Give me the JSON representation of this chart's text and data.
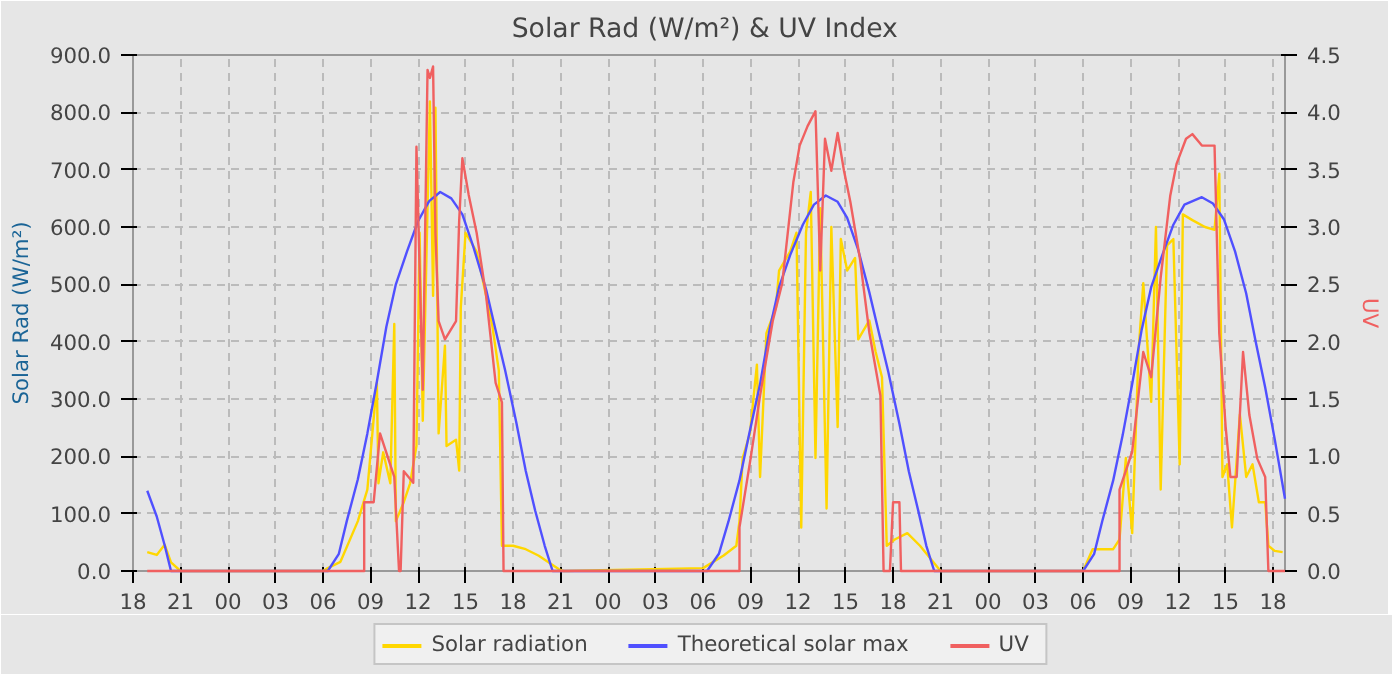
{
  "chart_data": {
    "type": "line",
    "title": "Solar Rad (W/m²) &  UV Index",
    "ylabel": "Solar Rad (W/m²)",
    "y2label": "UV",
    "xlim": [
      18,
      90.75
    ],
    "xticks": [
      {
        "value": 18,
        "label": "18"
      },
      {
        "value": 21,
        "label": "21"
      },
      {
        "value": 24,
        "label": "00"
      },
      {
        "value": 27,
        "label": "03"
      },
      {
        "value": 30,
        "label": "06"
      },
      {
        "value": 33,
        "label": "09"
      },
      {
        "value": 36,
        "label": "12"
      },
      {
        "value": 39,
        "label": "15"
      },
      {
        "value": 42,
        "label": "18"
      },
      {
        "value": 45,
        "label": "21"
      },
      {
        "value": 48,
        "label": "00"
      },
      {
        "value": 51,
        "label": "03"
      },
      {
        "value": 54,
        "label": "06"
      },
      {
        "value": 57,
        "label": "09"
      },
      {
        "value": 60,
        "label": "12"
      },
      {
        "value": 63,
        "label": "15"
      },
      {
        "value": 66,
        "label": "18"
      },
      {
        "value": 69,
        "label": "21"
      },
      {
        "value": 72,
        "label": "00"
      },
      {
        "value": 75,
        "label": "03"
      },
      {
        "value": 78,
        "label": "06"
      },
      {
        "value": 81,
        "label": "09"
      },
      {
        "value": 84,
        "label": "12"
      },
      {
        "value": 87,
        "label": "15"
      },
      {
        "value": 90,
        "label": "18"
      }
    ],
    "ylim": [
      0,
      900
    ],
    "yticks": [
      {
        "value": 0,
        "label": "0.0"
      },
      {
        "value": 100,
        "label": "100.0"
      },
      {
        "value": 200,
        "label": "200.0"
      },
      {
        "value": 300,
        "label": "300.0"
      },
      {
        "value": 400,
        "label": "400.0"
      },
      {
        "value": 500,
        "label": "500.0"
      },
      {
        "value": 600,
        "label": "600.0"
      },
      {
        "value": 700,
        "label": "700.0"
      },
      {
        "value": 800,
        "label": "800.0"
      },
      {
        "value": 900,
        "label": "900.0"
      }
    ],
    "y2lim": [
      0,
      4.5
    ],
    "y2ticks": [
      {
        "value": 0,
        "label": "0.0"
      },
      {
        "value": 0.5,
        "label": "0.5"
      },
      {
        "value": 1,
        "label": "1.0"
      },
      {
        "value": 1.5,
        "label": "1.5"
      },
      {
        "value": 2,
        "label": "2.0"
      },
      {
        "value": 2.5,
        "label": "2.5"
      },
      {
        "value": 3,
        "label": "3.0"
      },
      {
        "value": 3.5,
        "label": "3.5"
      },
      {
        "value": 4,
        "label": "4.0"
      },
      {
        "value": 4.5,
        "label": "4.5"
      }
    ],
    "grid": true,
    "legend": "bottom",
    "line_style": "solid",
    "marker": "none",
    "series": [
      {
        "name": "Solar radiation",
        "color": "#ffd700",
        "x": [
          18.9,
          19.5,
          20.0,
          20.4,
          21.0,
          30.0,
          30.3,
          31.1,
          32.2,
          32.8,
          33.4,
          33.5,
          33.8,
          34.25,
          34.5,
          34.6,
          35.1,
          35.5,
          35.9,
          36.1,
          36.3,
          36.75,
          36.95,
          37.1,
          37.3,
          37.7,
          37.8,
          38.4,
          38.6,
          38.7,
          39.0,
          39.7,
          40.3,
          40.7,
          41.1,
          41.3,
          42.0,
          42.8,
          43.6,
          44.9,
          45.2,
          54.0,
          55.3,
          56.1,
          56.3,
          56.5,
          56.96,
          57.4,
          57.6,
          58.0,
          58.6,
          58.8,
          59.5,
          59.9,
          60.2,
          60.5,
          60.8,
          61.1,
          61.4,
          61.8,
          62.1,
          62.5,
          62.7,
          63.1,
          63.6,
          63.8,
          64.5,
          64.9,
          65.3,
          65.6,
          66.1,
          66.9,
          67.7,
          69.0,
          77.8,
          78.0,
          78.6,
          79.9,
          80.3,
          80.7,
          81.1,
          81.5,
          81.8,
          82.3,
          82.6,
          82.9,
          83.3,
          83.7,
          84.1,
          84.3,
          84.9,
          85.7,
          86.3,
          86.6,
          86.8,
          87.1,
          87.4,
          87.9,
          88.3,
          88.7,
          89.1,
          89.5,
          89.7,
          90.1,
          90.6
        ],
        "values": [
          33,
          28,
          46,
          15,
          0,
          0,
          5,
          16,
          87,
          142,
          328,
          153,
          207,
          153,
          431,
          87,
          120,
          153,
          218,
          590,
          262,
          819,
          480,
          808,
          240,
          393,
          218,
          229,
          175,
          459,
          590,
          557,
          480,
          426,
          350,
          44,
          44,
          38,
          27,
          3,
          0,
          5,
          27,
          44,
          87,
          197,
          240,
          360,
          164,
          415,
          459,
          524,
          557,
          590,
          76,
          590,
          661,
          197,
          633,
          109,
          600,
          251,
          579,
          524,
          546,
          404,
          437,
          382,
          338,
          44,
          55,
          66,
          44,
          0,
          0,
          0,
          38,
          38,
          55,
          197,
          66,
          382,
          502,
          295,
          600,
          142,
          568,
          579,
          186,
          622,
          612,
          600,
          595,
          693,
          164,
          186,
          76,
          273,
          164,
          186,
          120,
          120,
          44,
          35,
          33
        ]
      },
      {
        "name": "Theoretical solar max",
        "color": "#5050ff",
        "x": [
          18.9,
          19.5,
          20.0,
          20.4,
          30.3,
          31.0,
          31.5,
          32.2,
          32.8,
          33.4,
          34.0,
          34.6,
          35.3,
          36.0,
          36.7,
          37.4,
          38.1,
          38.8,
          39.5,
          40.3,
          40.9,
          41.5,
          42.2,
          42.8,
          43.4,
          44.0,
          44.5,
          54.25,
          55.0,
          55.6,
          56.3,
          56.9,
          57.6,
          58.2,
          58.8,
          59.5,
          60.3,
          61.0,
          61.75,
          62.5,
          63.1,
          63.8,
          64.5,
          65.1,
          65.7,
          66.4,
          67.0,
          67.6,
          68.1,
          68.6,
          78.0,
          78.7,
          79.2,
          79.9,
          80.5,
          81.1,
          81.7,
          82.3,
          83.0,
          83.7,
          84.4,
          85.5,
          86.2,
          86.9,
          87.6,
          88.3,
          88.9,
          89.5,
          90.1,
          90.75
        ],
        "values": [
          140,
          95,
          45,
          0,
          0,
          30,
          87,
          160,
          240,
          330,
          426,
          500,
          557,
          610,
          645,
          661,
          650,
          622,
          565,
          491,
          420,
          350,
          260,
          175,
          105,
          44,
          0,
          0,
          30,
          86,
          158,
          237,
          326,
          421,
          495,
          551,
          604,
          639,
          655,
          644,
          616,
          560,
          486,
          416,
          347,
          257,
          173,
          104,
          44,
          0,
          0,
          30,
          86,
          158,
          237,
          326,
          421,
          495,
          551,
          604,
          639,
          652,
          641,
          613,
          557,
          484,
          400,
          320,
          230,
          126
        ]
      },
      {
        "name": "UV",
        "color": "#f06060",
        "axis": "y2",
        "x": [
          18.9,
          32.6,
          32.6,
          33.2,
          33.6,
          34.5,
          34.8,
          34.9,
          35.1,
          35.7,
          35.9,
          36.3,
          36.6,
          36.75,
          36.95,
          37.1,
          37.3,
          37.7,
          38.4,
          38.6,
          38.8,
          39.2,
          39.7,
          40.3,
          40.9,
          41.3,
          41.4,
          56.3,
          56.3,
          57.0,
          57.6,
          58.4,
          59.0,
          59.7,
          60.1,
          60.6,
          61.1,
          61.4,
          61.7,
          62.1,
          62.5,
          62.9,
          63.3,
          63.9,
          64.5,
          65.2,
          65.4,
          65.8,
          66.0,
          66.4,
          66.5,
          80.3,
          80.3,
          81.1,
          81.8,
          82.3,
          82.9,
          83.5,
          83.9,
          84.5,
          84.9,
          85.5,
          86.3,
          86.6,
          87.0,
          87.3,
          87.7,
          88.1,
          88.5,
          89.0,
          89.5,
          89.7,
          90.75
        ],
        "values": [
          0,
          0,
          0.6,
          0.6,
          1.2,
          0.82,
          0,
          0,
          0.87,
          0.77,
          3.7,
          1.58,
          4.37,
          4.3,
          4.4,
          2.95,
          2.18,
          2.02,
          2.18,
          3.06,
          3.6,
          3.28,
          2.95,
          2.4,
          1.64,
          1.47,
          0,
          0,
          0.38,
          0.98,
          1.53,
          2.18,
          2.51,
          3.39,
          3.71,
          3.88,
          4.01,
          2.62,
          3.77,
          3.49,
          3.82,
          3.49,
          3.22,
          2.73,
          2.08,
          1.53,
          0,
          0,
          0.6,
          0.6,
          0,
          0,
          0.71,
          1.04,
          1.91,
          1.69,
          2.56,
          3.27,
          3.55,
          3.77,
          3.81,
          3.71,
          3.71,
          2.07,
          1.26,
          0.82,
          0.82,
          1.91,
          1.36,
          0.98,
          0.82,
          0,
          0
        ]
      }
    ]
  }
}
